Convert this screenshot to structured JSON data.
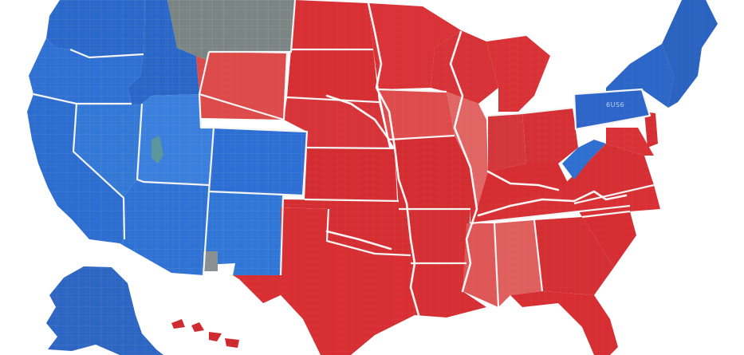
{
  "map": {
    "colors": {
      "blue": "#2f6fd0",
      "blue_light": "#3f86e0",
      "blue_dark": "#1d55b0",
      "red": "#d92e31",
      "red_light": "#e06563",
      "red_dark": "#c21f24",
      "gray": "#7b8482",
      "background": "#ffffff",
      "border": "#f4f4f4"
    },
    "labels": {
      "pennsylvania_label": "6US6"
    }
  }
}
